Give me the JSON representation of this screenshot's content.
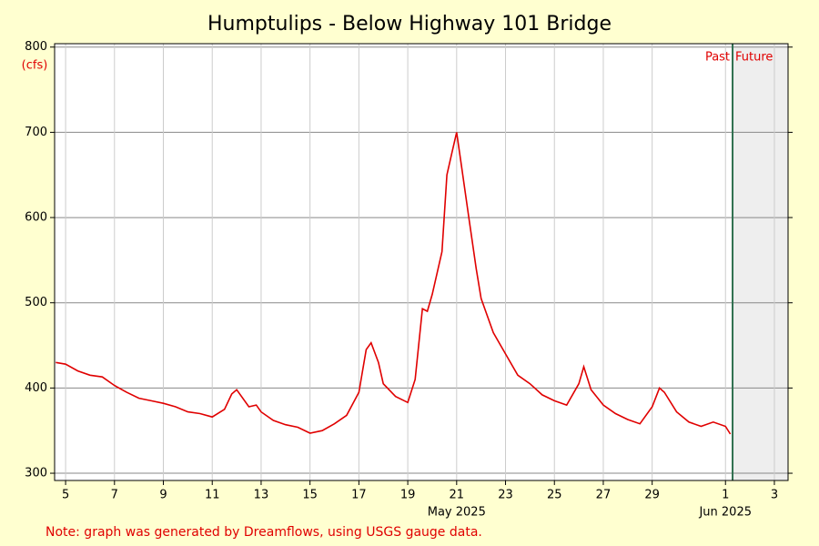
{
  "chart_data": {
    "type": "line",
    "title": "Humptulips - Below Highway 101 Bridge",
    "y_unit": "(cfs)",
    "month_labels": [
      {
        "value": 21,
        "label": "May 2025"
      },
      {
        "value": 32,
        "label": "Jun 2025"
      }
    ],
    "annotations": [
      "Past",
      "Future"
    ],
    "now": 32.29,
    "note": "Note: graph was generated by Dreamflows, using USGS gauge data.",
    "series": [
      {
        "name": "Flow",
        "color": "#e00000",
        "x": [
          4.6,
          5,
          5.5,
          6,
          6.5,
          7,
          7.5,
          8,
          8.5,
          9,
          9.5,
          10,
          10.5,
          11,
          11.5,
          11.8,
          12,
          12.5,
          12.8,
          13,
          13.5,
          14,
          14.5,
          15,
          15.5,
          16,
          16.5,
          17,
          17.3,
          17.5,
          17.8,
          18,
          18.5,
          19,
          19.3,
          19.6,
          19.8,
          20,
          20.4,
          20.6,
          20.8,
          21,
          21.2,
          21.5,
          21.8,
          22,
          22.5,
          23,
          23.5,
          24,
          24.5,
          25,
          25.5,
          26,
          26.2,
          26.5,
          27,
          27.5,
          28,
          28.5,
          29,
          29.3,
          29.5,
          30,
          30.5,
          31,
          31.5,
          32,
          32.2
        ],
        "values": [
          430,
          428,
          420,
          415,
          413,
          403,
          395,
          388,
          385,
          382,
          378,
          372,
          370,
          366,
          375,
          393,
          398,
          378,
          380,
          372,
          362,
          357,
          354,
          347,
          350,
          358,
          368,
          395,
          445,
          453,
          430,
          405,
          390,
          383,
          410,
          493,
          490,
          510,
          560,
          650,
          675,
          700,
          660,
          600,
          540,
          505,
          465,
          440,
          415,
          405,
          392,
          385,
          380,
          405,
          425,
          398,
          380,
          370,
          363,
          358,
          378,
          400,
          395,
          372,
          360,
          355,
          360,
          355,
          346
        ]
      }
    ],
    "xlim": [
      4.55,
      34.56
    ],
    "xticks": [
      5,
      7,
      9,
      11,
      13,
      15,
      17,
      19,
      21,
      23,
      25,
      27,
      29,
      {
        "value": 32,
        "label": "1"
      },
      {
        "value": 34,
        "label": "3"
      }
    ],
    "ylim": [
      291.5,
      804
    ],
    "yticks": [
      300,
      400,
      500,
      600,
      700,
      800
    ],
    "grid": true
  }
}
